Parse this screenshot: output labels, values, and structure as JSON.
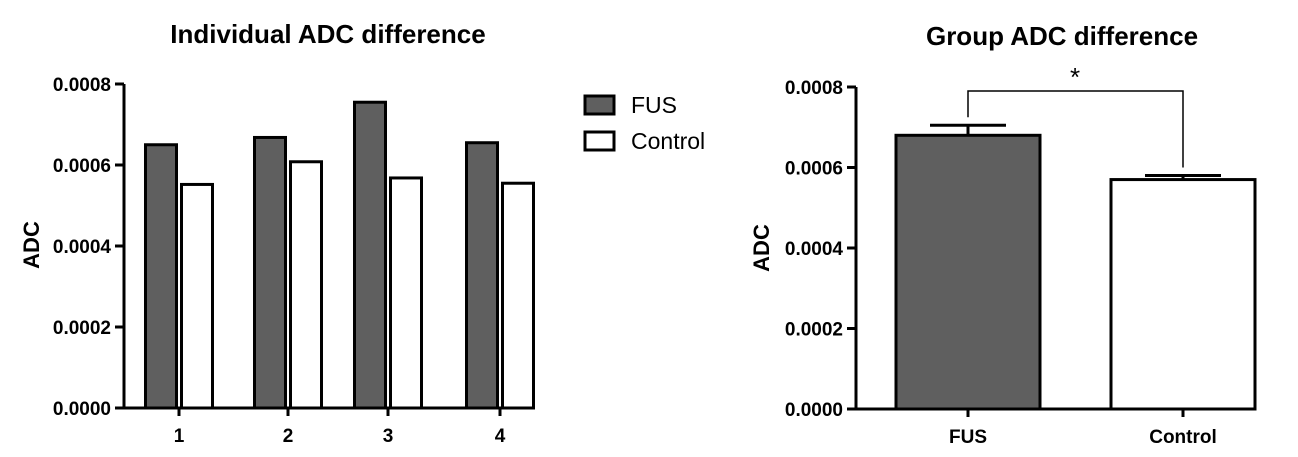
{
  "chart_data": [
    {
      "type": "bar",
      "title": "Individual ADC difference",
      "xlabel": "",
      "ylabel": "ADC",
      "ylim": [
        0,
        0.0008
      ],
      "yticks": [
        "0.0000",
        "0.0002",
        "0.0004",
        "0.0006",
        "0.0008"
      ],
      "categories": [
        "1",
        "2",
        "3",
        "4"
      ],
      "series": [
        {
          "name": "FUS",
          "color": "#5f5f5f",
          "values": [
            0.00065,
            0.000668,
            0.000755,
            0.000655
          ]
        },
        {
          "name": "Control",
          "color": "#ffffff",
          "values": [
            0.000552,
            0.000608,
            0.000568,
            0.000555
          ]
        }
      ],
      "legend": "right",
      "grid": false
    },
    {
      "type": "bar",
      "title": "Group ADC difference",
      "xlabel": "",
      "ylabel": "ADC",
      "ylim": [
        0,
        0.0008
      ],
      "yticks": [
        "0.0000",
        "0.0002",
        "0.0004",
        "0.0006",
        "0.0008"
      ],
      "categories": [
        "FUS",
        "Control"
      ],
      "values": [
        0.00068,
        0.00057
      ],
      "errors": [
        2.5e-05,
        1e-05
      ],
      "colors": [
        "#5f5f5f",
        "#ffffff"
      ],
      "significance": "*",
      "grid": false
    }
  ]
}
